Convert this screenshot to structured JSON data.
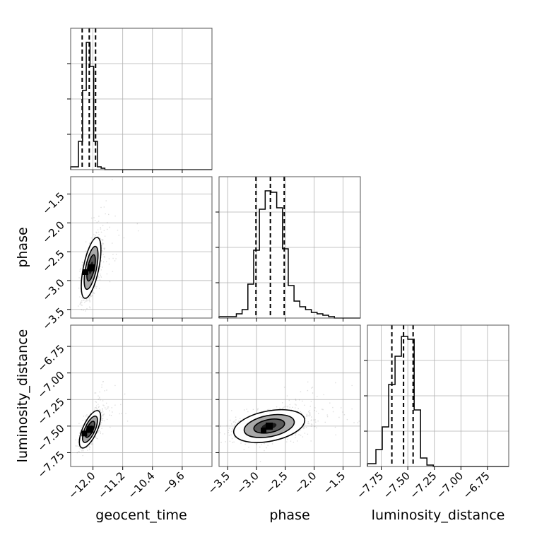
{
  "chart_data": {
    "type": "corner",
    "parameters": [
      "geocent_time",
      "phase",
      "luminosity_distance"
    ],
    "grid": true,
    "quantile_lines": "dashed",
    "marginals": [
      {
        "param": "geocent_time",
        "type": "histogram-step",
        "xlim": [
          -12.6,
          -8.8
        ],
        "ylim": [
          0,
          1
        ],
        "bins": [
          -12.6,
          -12.39,
          -12.28,
          -12.18,
          -12.08,
          -11.98,
          -11.88,
          -11.78,
          -11.68,
          -11.58
        ],
        "density": [
          0.02,
          0.2,
          0.56,
          0.9,
          0.73,
          0.2,
          0.02,
          0.01,
          0.0
        ],
        "quantiles": [
          -12.29,
          -12.1,
          -11.93
        ]
      },
      {
        "param": "phase",
        "type": "histogram-step",
        "xlim": [
          -3.65,
          -1.2
        ],
        "ylim": [
          0,
          1
        ],
        "bins": [
          -3.65,
          -3.35,
          -3.25,
          -3.15,
          -3.05,
          -2.95,
          -2.85,
          -2.75,
          -2.65,
          -2.55,
          -2.45,
          -2.35,
          -2.25,
          -2.15,
          -2.05,
          -1.95,
          -1.85,
          -1.75,
          -1.65
        ],
        "density": [
          0.01,
          0.03,
          0.06,
          0.24,
          0.48,
          0.77,
          0.9,
          0.89,
          0.78,
          0.49,
          0.23,
          0.12,
          0.08,
          0.06,
          0.04,
          0.03,
          0.02,
          0.01
        ],
        "quantiles": [
          -3.01,
          -2.76,
          -2.52
        ]
      },
      {
        "param": "luminosity_distance",
        "type": "histogram-step",
        "xlim": [
          -7.88,
          -6.55
        ],
        "ylim": [
          0,
          1
        ],
        "bins": [
          -7.88,
          -7.8,
          -7.74,
          -7.68,
          -7.62,
          -7.56,
          -7.5,
          -7.44,
          -7.38,
          -7.32,
          -7.26,
          -7.2
        ],
        "density": [
          0.02,
          0.12,
          0.28,
          0.58,
          0.78,
          0.92,
          0.9,
          0.4,
          0.06,
          0.01,
          0.0
        ],
        "quantiles": [
          -7.65,
          -7.54,
          -7.45
        ]
      }
    ],
    "joints": [
      {
        "x": "geocent_time",
        "y": "phase",
        "xlim": [
          -12.6,
          -8.8
        ],
        "ylim": [
          -3.65,
          -1.2
        ],
        "center": [
          -12.05,
          -2.78
        ],
        "spread": [
          0.12,
          0.24
        ],
        "correlation": 0.6,
        "points": 1400
      },
      {
        "x": "geocent_time",
        "y": "luminosity_distance",
        "xlim": [
          -12.6,
          -8.8
        ],
        "ylim": [
          -7.88,
          -6.55
        ],
        "center": [
          -12.08,
          -7.53
        ],
        "spread": [
          0.13,
          0.08
        ],
        "correlation": 0.68,
        "points": 1400
      },
      {
        "x": "phase",
        "y": "luminosity_distance",
        "xlim": [
          -3.65,
          -1.2
        ],
        "ylim": [
          -7.88,
          -6.55
        ],
        "center": [
          -2.78,
          -7.5
        ],
        "spread": [
          0.28,
          0.07
        ],
        "correlation": 0.35,
        "points": 1800
      }
    ],
    "axes": {
      "geocent_time": {
        "ticks": [
          -12.0,
          -11.2,
          -10.4,
          -9.6
        ],
        "tick_labels": [
          "−12.0",
          "−11.2",
          "−10.4",
          "−9.6"
        ]
      },
      "phase": {
        "ticks": [
          -3.5,
          -3.0,
          -2.5,
          -2.0,
          -1.5
        ],
        "tick_labels": [
          "−3.5",
          "−3.0",
          "−2.5",
          "−2.0",
          "−1.5"
        ]
      },
      "luminosity_distance": {
        "ticks": [
          -7.75,
          -7.5,
          -7.25,
          -7.0,
          -6.75
        ],
        "tick_labels": [
          "−7.75",
          "−7.50",
          "−7.25",
          "−7.00",
          "−6.75"
        ]
      }
    },
    "xlabels": [
      "geocent_time",
      "phase",
      "luminosity_distance"
    ],
    "ylabels": [
      "phase",
      "luminosity_distance"
    ]
  }
}
